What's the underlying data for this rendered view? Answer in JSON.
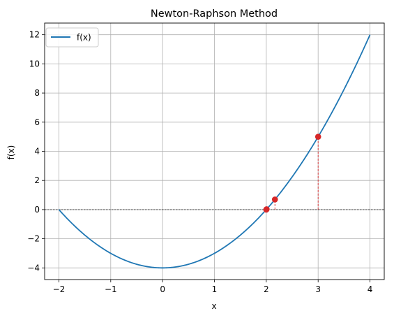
{
  "chart_data": {
    "type": "line",
    "title": "Newton-Raphson Method",
    "xlabel": "x",
    "ylabel": "f(x)",
    "xlim": [
      -2.275,
      4.275
    ],
    "ylim": [
      -4.8,
      12.8
    ],
    "x_ticks": [
      -2,
      -1,
      0,
      1,
      2,
      3,
      4
    ],
    "x_tick_labels": [
      "−2",
      "−1",
      "0",
      "1",
      "2",
      "3",
      "4"
    ],
    "y_ticks": [
      -4,
      -2,
      0,
      2,
      4,
      6,
      8,
      10,
      12
    ],
    "y_tick_labels": [
      "−4",
      "−2",
      "0",
      "2",
      "4",
      "6",
      "8",
      "10",
      "12"
    ],
    "grid": true,
    "legend": {
      "position": "top-left",
      "entries": [
        "f(x)"
      ]
    },
    "series": [
      {
        "name": "f(x)",
        "color": "#1f77b4",
        "x": [
          -2.0,
          -1.75,
          -1.5,
          -1.25,
          -1.0,
          -0.75,
          -0.5,
          -0.25,
          0.0,
          0.25,
          0.5,
          0.75,
          1.0,
          1.25,
          1.5,
          1.75,
          2.0,
          2.25,
          2.5,
          2.75,
          3.0,
          3.25,
          3.5,
          3.75,
          4.0
        ],
        "y": [
          0.0,
          -0.9375,
          -1.75,
          -2.4375,
          -3.0,
          -3.4375,
          -3.75,
          -3.9375,
          -4.0,
          -3.9375,
          -3.75,
          -3.4375,
          -3.0,
          -2.4375,
          -1.75,
          -0.9375,
          0.0,
          1.0625,
          2.25,
          3.5625,
          5.0,
          6.5625,
          8.25,
          10.0625,
          12.0
        ]
      }
    ],
    "iterations": {
      "color": "#d62728",
      "x": [
        3.0,
        2.1667,
        2.0064,
        2.0
      ],
      "y": [
        5.0,
        0.6944,
        0.0256,
        0.0
      ]
    },
    "zero_line": {
      "y": 0,
      "color": "#000000",
      "style": "dashed"
    }
  }
}
